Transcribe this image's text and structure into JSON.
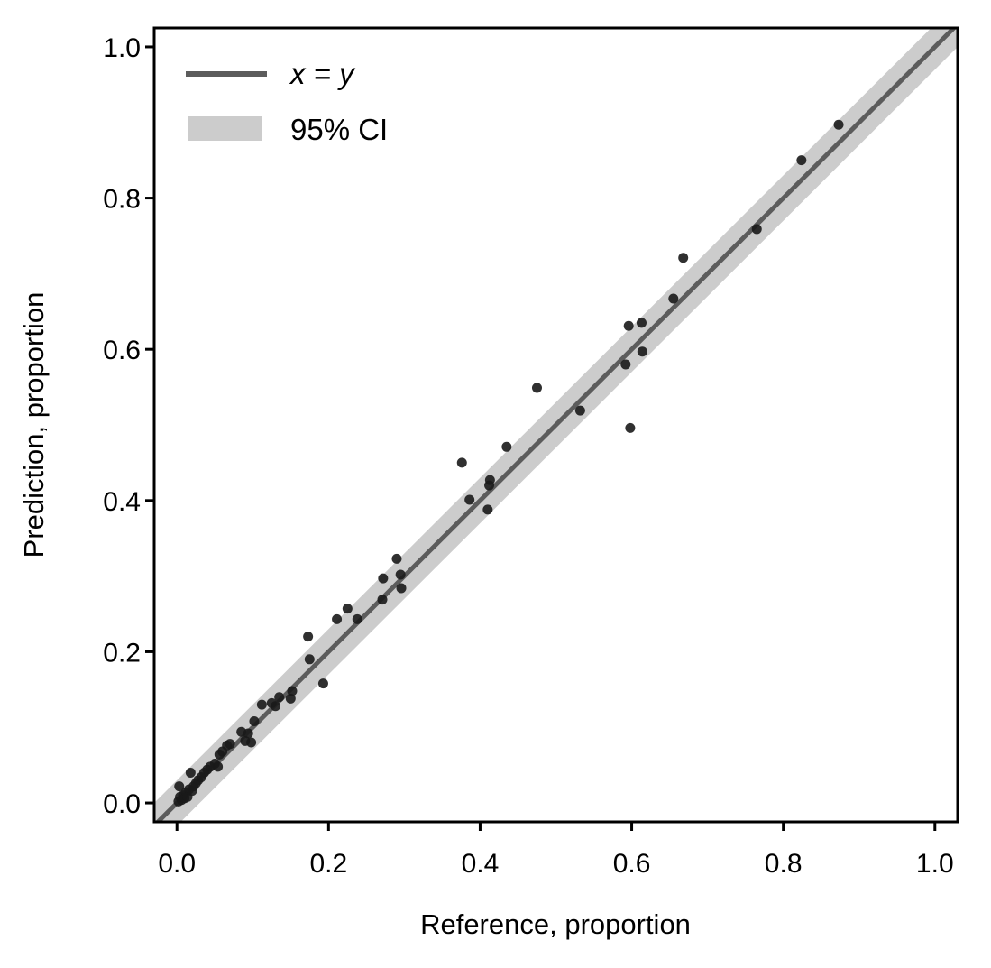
{
  "chart_data": {
    "type": "scatter",
    "title": "",
    "xlabel": "Reference, proportion",
    "ylabel": "Prediction, proportion",
    "xlim": [
      -0.03,
      1.03
    ],
    "ylim": [
      -0.025,
      1.025
    ],
    "xticks": [
      0.0,
      0.2,
      0.4,
      0.6,
      0.8,
      1.0
    ],
    "yticks": [
      0.0,
      0.2,
      0.4,
      0.6,
      0.8,
      1.0
    ],
    "xtick_labels": [
      "0.0",
      "0.2",
      "0.4",
      "0.6",
      "0.8",
      "1.0"
    ],
    "ytick_labels": [
      "0.0",
      "0.2",
      "0.4",
      "0.6",
      "0.8",
      "1.0"
    ],
    "grid": false,
    "legend_position": "top-left",
    "legend": {
      "line_label": "x = y",
      "band_label": "95% CI"
    },
    "ci_halfwidth": 0.03,
    "colors": {
      "line": "#5c5c5c",
      "band": "#cccccc",
      "points": "#1a1a1a"
    },
    "points": [
      {
        "x": 0.002,
        "y": 0.002
      },
      {
        "x": 0.004,
        "y": 0.008
      },
      {
        "x": 0.006,
        "y": 0.004
      },
      {
        "x": 0.003,
        "y": 0.022
      },
      {
        "x": 0.008,
        "y": 0.01
      },
      {
        "x": 0.01,
        "y": 0.006
      },
      {
        "x": 0.012,
        "y": 0.014
      },
      {
        "x": 0.014,
        "y": 0.008
      },
      {
        "x": 0.016,
        "y": 0.018
      },
      {
        "x": 0.018,
        "y": 0.04
      },
      {
        "x": 0.02,
        "y": 0.016
      },
      {
        "x": 0.022,
        "y": 0.022
      },
      {
        "x": 0.025,
        "y": 0.026
      },
      {
        "x": 0.028,
        "y": 0.03
      },
      {
        "x": 0.032,
        "y": 0.034
      },
      {
        "x": 0.036,
        "y": 0.04
      },
      {
        "x": 0.04,
        "y": 0.044
      },
      {
        "x": 0.044,
        "y": 0.048
      },
      {
        "x": 0.05,
        "y": 0.052
      },
      {
        "x": 0.054,
        "y": 0.048
      },
      {
        "x": 0.056,
        "y": 0.064
      },
      {
        "x": 0.06,
        "y": 0.068
      },
      {
        "x": 0.066,
        "y": 0.076
      },
      {
        "x": 0.07,
        "y": 0.078
      },
      {
        "x": 0.085,
        "y": 0.094
      },
      {
        "x": 0.09,
        "y": 0.082
      },
      {
        "x": 0.094,
        "y": 0.092
      },
      {
        "x": 0.098,
        "y": 0.08
      },
      {
        "x": 0.102,
        "y": 0.108
      },
      {
        "x": 0.112,
        "y": 0.13
      },
      {
        "x": 0.125,
        "y": 0.132
      },
      {
        "x": 0.13,
        "y": 0.128
      },
      {
        "x": 0.135,
        "y": 0.14
      },
      {
        "x": 0.15,
        "y": 0.138
      },
      {
        "x": 0.152,
        "y": 0.148
      },
      {
        "x": 0.173,
        "y": 0.22
      },
      {
        "x": 0.175,
        "y": 0.19
      },
      {
        "x": 0.193,
        "y": 0.158
      },
      {
        "x": 0.211,
        "y": 0.243
      },
      {
        "x": 0.225,
        "y": 0.257
      },
      {
        "x": 0.238,
        "y": 0.243
      },
      {
        "x": 0.271,
        "y": 0.269
      },
      {
        "x": 0.272,
        "y": 0.297
      },
      {
        "x": 0.29,
        "y": 0.323
      },
      {
        "x": 0.295,
        "y": 0.302
      },
      {
        "x": 0.296,
        "y": 0.284
      },
      {
        "x": 0.376,
        "y": 0.45
      },
      {
        "x": 0.386,
        "y": 0.401
      },
      {
        "x": 0.41,
        "y": 0.388
      },
      {
        "x": 0.412,
        "y": 0.42
      },
      {
        "x": 0.413,
        "y": 0.427
      },
      {
        "x": 0.435,
        "y": 0.471
      },
      {
        "x": 0.475,
        "y": 0.549
      },
      {
        "x": 0.532,
        "y": 0.519
      },
      {
        "x": 0.592,
        "y": 0.58
      },
      {
        "x": 0.596,
        "y": 0.631
      },
      {
        "x": 0.598,
        "y": 0.496
      },
      {
        "x": 0.613,
        "y": 0.635
      },
      {
        "x": 0.614,
        "y": 0.597
      },
      {
        "x": 0.655,
        "y": 0.667
      },
      {
        "x": 0.668,
        "y": 0.721
      },
      {
        "x": 0.765,
        "y": 0.759
      },
      {
        "x": 0.824,
        "y": 0.85
      },
      {
        "x": 0.873,
        "y": 0.897
      }
    ]
  }
}
